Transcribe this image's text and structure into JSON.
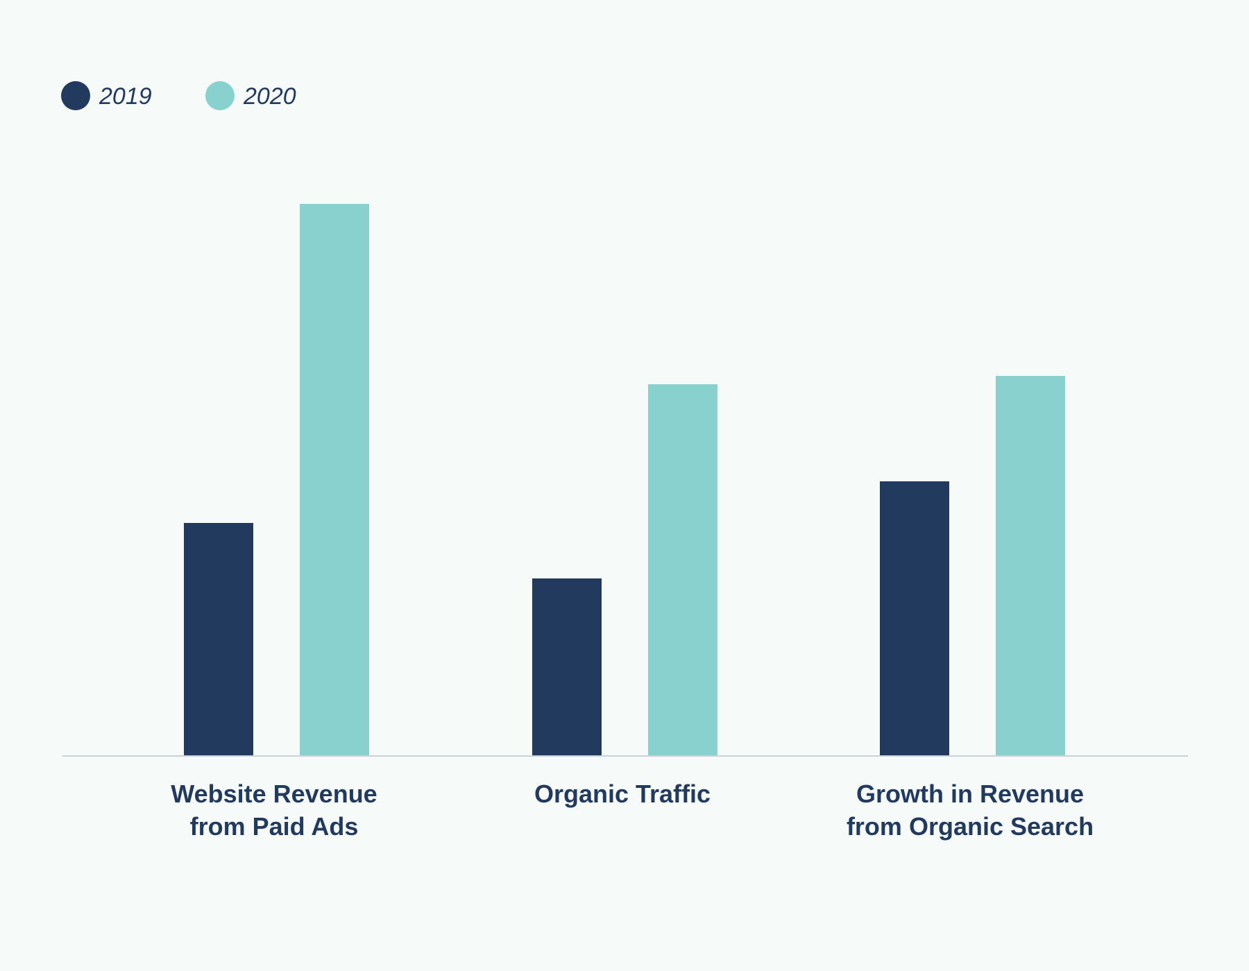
{
  "chart_data": {
    "type": "bar",
    "title": "",
    "xlabel": "",
    "ylabel": "",
    "ylim": [
      0,
      100
    ],
    "grid": false,
    "legend_position": "top-left",
    "categories": [
      [
        "Website Revenue",
        "from Paid Ads"
      ],
      [
        "Organic Traffic"
      ],
      [
        "Growth in Revenue",
        "from Organic Search"
      ]
    ],
    "series": [
      {
        "name": "2019",
        "color": "#223a5e",
        "values": [
          42,
          32,
          49.5
        ]
      },
      {
        "name": "2020",
        "color": "#89d1cf",
        "values": [
          99.5,
          67,
          68.5
        ]
      }
    ],
    "text_color": "#223a5e",
    "axis_color": "#c9d2d8"
  }
}
